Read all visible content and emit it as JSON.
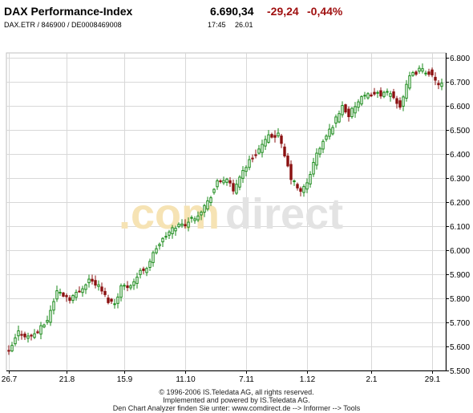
{
  "header": {
    "title": "DAX Performance-Index",
    "price": "6.690,34",
    "change_abs": "-29,24",
    "change_pct": "-0,44%",
    "identifiers": "DAX.ETR  /  846900  /  DE0008469008",
    "time": "17:45",
    "date": "26.01"
  },
  "watermark": {
    "part1": ".com",
    "part2": "direct"
  },
  "footer": {
    "line1": "© 1996-2006 IS.Teledata AG, all rights reserved.",
    "line2": "Implemented and powered by IS.Teledata AG.",
    "line3": "Den Chart Analyzer finden Sie unter: www.comdirect.de --> Informer --> Tools"
  },
  "colors": {
    "up": "#1a8a1a",
    "down": "#8b1010",
    "grid": "#d8d8d8",
    "axis": "#000000",
    "watermark_orange": "#f6e3b4",
    "watermark_gray": "#e3e3e3",
    "change_negative": "#a01010"
  },
  "chart_data": {
    "type": "candlestick",
    "ylim": [
      5500,
      6820
    ],
    "yticks": [
      5500,
      5600,
      5700,
      5800,
      5900,
      6000,
      6100,
      6200,
      6300,
      6400,
      6500,
      6600,
      6700,
      6800
    ],
    "ytick_labels": [
      "5.500",
      "5.600",
      "5.700",
      "5.800",
      "5.900",
      "6.000",
      "6.100",
      "6.200",
      "6.300",
      "6.400",
      "6.500",
      "6.600",
      "6.700",
      "6.800"
    ],
    "xticks": [
      {
        "label": "26.7",
        "index": 0
      },
      {
        "label": "21.8",
        "index": 18
      },
      {
        "label": "15.9",
        "index": 36
      },
      {
        "label": "11.10",
        "index": 55
      },
      {
        "label": "7.11",
        "index": 74
      },
      {
        "label": "1.12",
        "index": 93
      },
      {
        "label": "2.1",
        "index": 113
      },
      {
        "label": "29.1",
        "index": 132
      }
    ],
    "grid": true,
    "num_bars": 136,
    "anchors": [
      [
        0,
        5575
      ],
      [
        3,
        5660
      ],
      [
        6,
        5640
      ],
      [
        9,
        5660
      ],
      [
        12,
        5710
      ],
      [
        15,
        5830
      ],
      [
        19,
        5800
      ],
      [
        22,
        5830
      ],
      [
        25,
        5880
      ],
      [
        28,
        5850
      ],
      [
        31,
        5790
      ],
      [
        33,
        5780
      ],
      [
        35,
        5850
      ],
      [
        37,
        5850
      ],
      [
        39,
        5870
      ],
      [
        41,
        5910
      ],
      [
        43,
        5930
      ],
      [
        46,
        6010
      ],
      [
        49,
        6060
      ],
      [
        52,
        6100
      ],
      [
        55,
        6110
      ],
      [
        59,
        6150
      ],
      [
        62,
        6200
      ],
      [
        65,
        6280
      ],
      [
        68,
        6300
      ],
      [
        70,
        6240
      ],
      [
        72,
        6310
      ],
      [
        75,
        6370
      ],
      [
        78,
        6420
      ],
      [
        81,
        6470
      ],
      [
        84,
        6480
      ],
      [
        86,
        6390
      ],
      [
        88,
        6300
      ],
      [
        91,
        6240
      ],
      [
        93,
        6280
      ],
      [
        96,
        6400
      ],
      [
        98,
        6450
      ],
      [
        101,
        6520
      ],
      [
        104,
        6600
      ],
      [
        106,
        6560
      ],
      [
        108,
        6600
      ],
      [
        110,
        6630
      ],
      [
        113,
        6650
      ],
      [
        116,
        6650
      ],
      [
        119,
        6650
      ],
      [
        122,
        6600
      ],
      [
        125,
        6720
      ],
      [
        128,
        6750
      ],
      [
        131,
        6740
      ],
      [
        133,
        6700
      ],
      [
        135,
        6690
      ]
    ]
  }
}
